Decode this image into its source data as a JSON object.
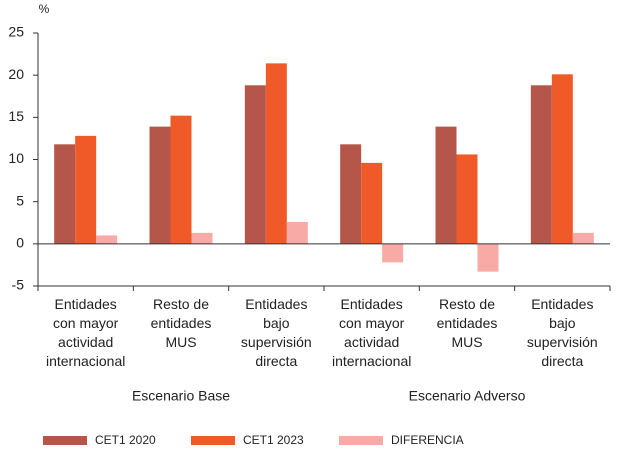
{
  "chart_data": {
    "type": "bar",
    "y_label": "%",
    "categories": [
      "Entidades\ncon mayor\nactividad\ninternacional",
      "Resto de\nentidades\nMUS",
      "Entidades\nbajo\nsupervisión\ndirecta",
      "Entidades\ncon mayor\nactividad\ninternacional",
      "Resto de\nentidades\nMUS",
      "Entidades\nbajo\nsupervisión\ndirecta"
    ],
    "group_labels": [
      "Escenario Base",
      "Escenario Adverso"
    ],
    "series": [
      {
        "name": "CET1 2020",
        "color": "#b5564a",
        "values": [
          11.8,
          13.9,
          18.8,
          11.8,
          13.9,
          18.8
        ]
      },
      {
        "name": "CET1 2023",
        "color": "#f05a28",
        "values": [
          12.8,
          15.2,
          21.4,
          9.6,
          10.6,
          20.1
        ]
      },
      {
        "name": "DIFERENCIA",
        "color": "#f7aaa6",
        "values": [
          1.0,
          1.3,
          2.6,
          -2.2,
          -3.3,
          1.3
        ]
      }
    ],
    "ylim": [
      -5,
      25
    ],
    "yticks": [
      -5,
      0,
      5,
      10,
      15,
      20,
      25
    ],
    "grid": false,
    "legend": "bottom"
  }
}
